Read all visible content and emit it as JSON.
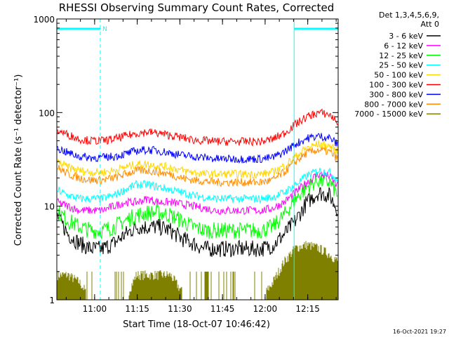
{
  "chart_data": {
    "type": "line",
    "title": "RHESSI Observing Summary Count Rates, Corrected",
    "xlabel": "Start Time (18-Oct-07 10:46:42)",
    "ylabel": "Corrected Count Rate (s⁻¹ detector⁻¹)",
    "yscale": "log",
    "ylim": [
      1,
      1000
    ],
    "xlim_minutes_after_start": [
      0,
      99
    ],
    "x_start": "10:46:42",
    "y_ticks": [
      "1",
      "10",
      "100",
      "1000"
    ],
    "x_ticks": [
      "11:00",
      "11:15",
      "11:30",
      "11:45",
      "12:00",
      "12:15"
    ],
    "legend_header": [
      "Det 1,3,4,5,6,9,",
      "Att 0"
    ],
    "legend_position": "right",
    "footer": "16-Oct-2021 19:27",
    "annotation_label": "N",
    "x": [
      0,
      4,
      8,
      12,
      16,
      20,
      24,
      28,
      32,
      36,
      40,
      44,
      48,
      52,
      56,
      60,
      64,
      68,
      72,
      76,
      80,
      84,
      88,
      92,
      96,
      99
    ],
    "series": [
      {
        "name": "3 - 6 keV",
        "color": "#000000",
        "values": [
          8,
          5,
          4,
          3.5,
          3.5,
          4,
          5,
          6,
          6,
          6,
          5.5,
          4.5,
          4,
          3.5,
          3.5,
          3.5,
          3.5,
          3.5,
          3.5,
          3.8,
          5,
          7,
          11,
          14,
          13,
          9
        ]
      },
      {
        "name": "6 - 12 keV",
        "color": "#ff00ff",
        "values": [
          11,
          10,
          9,
          9,
          9,
          10,
          11,
          11,
          12,
          11,
          11,
          10.5,
          10,
          9.5,
          9,
          9,
          9,
          9,
          9,
          9.5,
          11,
          14,
          18,
          22,
          21,
          16
        ]
      },
      {
        "name": "12 - 25 keV",
        "color": "#00ff00",
        "values": [
          9,
          7,
          6,
          5.5,
          5.5,
          6,
          7,
          8,
          8.5,
          8.5,
          8,
          7,
          6,
          5.5,
          5.5,
          5.5,
          5.5,
          5.5,
          5.5,
          6,
          8,
          12,
          16,
          19,
          18,
          13
        ]
      },
      {
        "name": "25 - 50 keV",
        "color": "#00ffff",
        "values": [
          15,
          13,
          12,
          12,
          12,
          13,
          15,
          17,
          17,
          16,
          15,
          14,
          13,
          12.5,
          12,
          12,
          12,
          12,
          12,
          12.5,
          14,
          17,
          21,
          24,
          23,
          19
        ]
      },
      {
        "name": "50 - 100 keV",
        "color": "#ffd700",
        "values": [
          30,
          26,
          24,
          23,
          23,
          24,
          26,
          28,
          28,
          27,
          26,
          24,
          23,
          22,
          22,
          22,
          22,
          22,
          22,
          23,
          27,
          34,
          42,
          46,
          44,
          38
        ]
      },
      {
        "name": "100 - 300 keV",
        "color": "#ff0000",
        "values": [
          65,
          58,
          52,
          50,
          50,
          52,
          56,
          60,
          62,
          60,
          57,
          54,
          51,
          50,
          49,
          49,
          49,
          49,
          49,
          52,
          60,
          75,
          90,
          100,
          95,
          78
        ]
      },
      {
        "name": "300 - 800 keV",
        "color": "#0000ff",
        "values": [
          42,
          37,
          34,
          33,
          33,
          34,
          36,
          39,
          40,
          39,
          37,
          35,
          34,
          33,
          32,
          32,
          32,
          32,
          32,
          33,
          38,
          46,
          53,
          56,
          54,
          45
        ]
      },
      {
        "name": "800 - 7000 keV",
        "color": "#ff8c00",
        "values": [
          26,
          22,
          20,
          19,
          19,
          20,
          22,
          24,
          24,
          23,
          22,
          20,
          19,
          18.5,
          18,
          18,
          18,
          18,
          18,
          19,
          23,
          30,
          37,
          40,
          38,
          32
        ]
      },
      {
        "name": "7000 - 15000 keV",
        "color": "#808000",
        "values": [
          1.8,
          1.8,
          1.5,
          1,
          1,
          1,
          1,
          1.8,
          1.8,
          1.8,
          1.8,
          1.2,
          1,
          1,
          1,
          1,
          1,
          1,
          1,
          1.5,
          2.5,
          3.5,
          3.8,
          3.5,
          3,
          2.5
        ]
      }
    ],
    "attenuator_bars": [
      {
        "from_min": 0,
        "to_min": 15.3
      },
      {
        "from_min": 83.5,
        "to_min": 99
      }
    ],
    "vertical_markers_min": [
      0,
      15.3,
      83.5,
      99
    ],
    "colors": {
      "background": "#ffffff",
      "frame": "#000000",
      "marker": "#00ffff"
    }
  }
}
